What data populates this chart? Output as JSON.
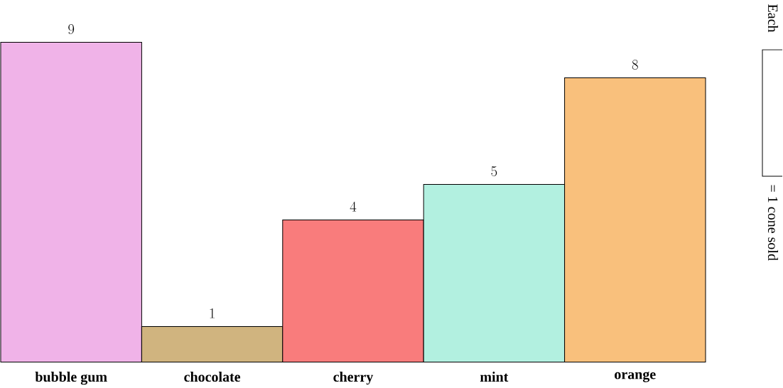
{
  "chart_data": {
    "type": "bar",
    "categories": [
      "bubble gum",
      "chocolate",
      "cherry",
      "mint",
      "orange"
    ],
    "values": [
      9,
      1,
      4,
      5,
      8
    ],
    "colors": [
      "#f0b3e8",
      "#d0b47f",
      "#f97c7c",
      "#b2f0e0",
      "#f9c07c"
    ],
    "data_labels": true,
    "annotations": [
      "Each",
      "= 1 cone sold"
    ]
  }
}
